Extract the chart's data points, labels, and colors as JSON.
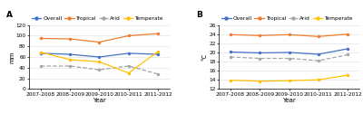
{
  "years": [
    "2007-2008",
    "2008-2009",
    "2009-2010",
    "2010-2011",
    "2011-2012"
  ],
  "panel_A": {
    "title": "A",
    "ylabel": "mm",
    "ylim": [
      0,
      120
    ],
    "yticks": [
      0,
      20,
      40,
      60,
      80,
      100,
      120
    ],
    "series": {
      "Overall": [
        67,
        65,
        60,
        67,
        65
      ],
      "Tropical": [
        95,
        94,
        88,
        100,
        104
      ],
      "Arid": [
        43,
        43,
        36,
        43,
        28
      ],
      "Temperate": [
        69,
        55,
        51,
        30,
        70
      ]
    }
  },
  "panel_B": {
    "title": "B",
    "ylabel": "°C",
    "ylim": [
      12,
      26
    ],
    "yticks": [
      12,
      14,
      16,
      18,
      20,
      22,
      24,
      26
    ],
    "series": {
      "Overall": [
        20.1,
        19.9,
        20.0,
        19.6,
        20.8
      ],
      "Tropical": [
        23.9,
        23.7,
        23.9,
        23.5,
        24.0
      ],
      "Arid": [
        19.0,
        18.7,
        18.7,
        18.2,
        19.5
      ],
      "Temperate": [
        13.9,
        13.7,
        13.8,
        14.0,
        15.0
      ]
    }
  },
  "colors": {
    "Overall": "#4472C4",
    "Tropical": "#ED7D31",
    "Arid": "#A5A5A5",
    "Temperate": "#FFC000"
  },
  "legend_order": [
    "Overall",
    "Tropical",
    "Arid",
    "Temperate"
  ],
  "xlabel": "Year",
  "label_fontsize": 5.0,
  "tick_fontsize": 4.2,
  "legend_fontsize": 4.2,
  "title_fontsize": 6.5,
  "line_width": 0.9,
  "marker_size": 2.2
}
